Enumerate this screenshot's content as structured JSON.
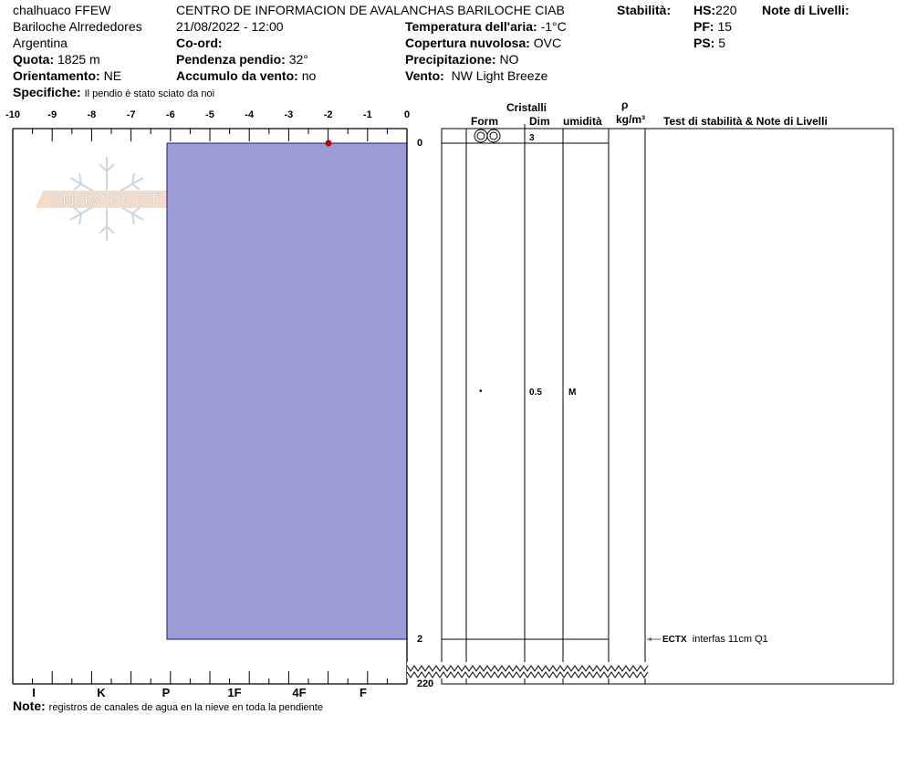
{
  "header": {
    "location": "chalhuaco FFEW",
    "region": "Bariloche Alrrededores",
    "country": "Argentina",
    "quota_label": "Quota:",
    "quota": "1825 m",
    "orientamento_label": "Orientamento:",
    "orientamento": "NE",
    "specifiche_label": "Specifiche:",
    "specifiche": "Il pendio è stato sciato da noi",
    "organization": "CENTRO DE INFORMACION DE AVALANCHAS BARILOCHE CIAB",
    "datetime": "21/08/2022 - 12:00",
    "coord_label": "Co-ord:",
    "pendenza_label": "Pendenza pendio:",
    "pendenza": "32°",
    "accumulo_label": "Accumulo da vento:",
    "accumulo": "no",
    "stabilita_label": "Stabilità:",
    "temperatura_label": "Temperatura dell'aria:",
    "temperatura": "-1°C",
    "copertura_label": "Copertura nuvolosa:",
    "copertura": "OVC",
    "precipitazione_label": "Precipitazione:",
    "precipitazione": "NO",
    "vento_label": "Vento:",
    "vento": "NW Light Breeze",
    "hs_label": "HS:",
    "hs": "220",
    "pf_label": "PF:",
    "pf": "15",
    "ps_label": "PS:",
    "ps": "5",
    "note_livelli_label": "Note di Livelli:"
  },
  "temp_axis": [
    "-10",
    "-9",
    "-8",
    "-7",
    "-6",
    "-5",
    "-4",
    "-3",
    "-2",
    "-1",
    "0"
  ],
  "hardness_axis": [
    "I",
    "K",
    "P",
    "1F",
    "4F",
    "F"
  ],
  "depth_labels": [
    "0",
    "2",
    "220"
  ],
  "table": {
    "cristalli": "Cristalli",
    "form": "Form",
    "dim": "Dim",
    "umidita": "umidità",
    "rho": "ρ",
    "rho_unit": "kg/m³",
    "tests": "Test di stabilità & Note di Livelli",
    "layers": [
      {
        "form_icon": "melt-forms-cluster-icon",
        "dim": "3",
        "umidita": ""
      },
      {
        "form_icon": "dot-icon",
        "form": "•",
        "dim": "0.5",
        "umidita": "M"
      }
    ],
    "test_result": {
      "code": "ECTX",
      "note": "interfas 11cm Q1"
    }
  },
  "footer": {
    "note_label": "Note:",
    "note": "registros de canales de agua en la nieve en toda la pendiente"
  },
  "logo": "SNOW PILOT",
  "colors": {
    "layer_fill": "#9b9bd6",
    "layer_stroke": "#1a1a8c",
    "temp_point": "#c00000"
  }
}
